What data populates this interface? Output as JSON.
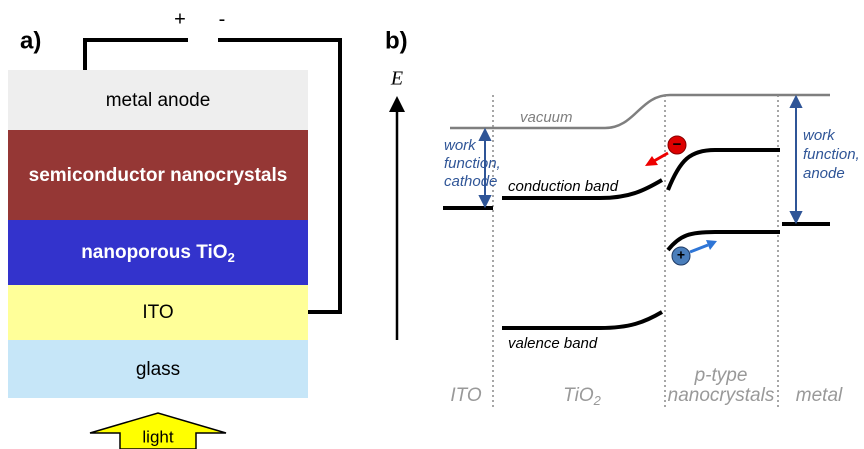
{
  "panel_a": {
    "label": "a)",
    "plus": "+",
    "minus": "-",
    "layers": [
      "metal anode",
      "semiconductor nanocrystals",
      {
        "text": "nanoporous TiO",
        "sub": "2"
      },
      "ITO",
      "glass"
    ],
    "light": "light"
  },
  "panel_b": {
    "label": "b)",
    "axis": "E",
    "vacuum": "vacuum",
    "work_function_cathode": [
      "work",
      "function,",
      "cathode"
    ],
    "work_function_anode": [
      "work",
      "function,",
      "anode"
    ],
    "conduction_band": "conduction band",
    "valence_band": "valence band",
    "electron": "−",
    "hole": "+",
    "regions": [
      "ITO",
      {
        "text": "TiO",
        "sub": "2"
      },
      [
        "p-type",
        "nanocrystals"
      ],
      "metal"
    ]
  }
}
